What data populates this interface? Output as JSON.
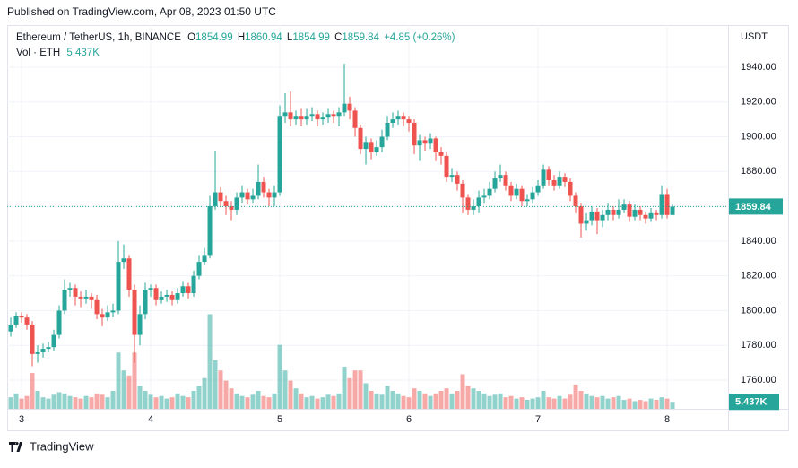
{
  "header": {
    "published": "Published on TradingView.com, Apr 08, 2023 01:50 UTC"
  },
  "footer": {
    "brand": "TradingView"
  },
  "chart_data": {
    "type": "candlestick",
    "symbol": "Ethereum / TetherUS, 1h, BINANCE",
    "ohlc_prefixes": [
      "O",
      "H",
      "L",
      "C"
    ],
    "change": {
      "value": 4.85,
      "label": "+4.85"
    },
    "change_pct": {
      "value": 0.26,
      "label": "(+0.26%)"
    },
    "volume_title": "Vol · ETH",
    "last_volume_label": "5.437K",
    "y_axis_label": "USDT",
    "up_color": "#26a69a",
    "down_color": "#ef5350",
    "grid": true,
    "ylim": [
      1743.5,
      1964.2
    ],
    "yticks": [
      {
        "value": 1760,
        "label": "1760.00"
      },
      {
        "value": 1780,
        "label": "1780.00"
      },
      {
        "value": 1800,
        "label": "1800.00"
      },
      {
        "value": 1820,
        "label": "1820.00"
      },
      {
        "value": 1840,
        "label": "1840.00"
      },
      {
        "value": 1860,
        "label": "1860.00"
      },
      {
        "value": 1880,
        "label": "1880.00"
      },
      {
        "value": 1900,
        "label": "1900.00"
      },
      {
        "value": 1920,
        "label": "1920.00"
      },
      {
        "value": 1940,
        "label": "1940.00"
      }
    ],
    "xlim": [
      -0.67,
      133.33
    ],
    "xticks": [
      {
        "value": 2,
        "label": "3"
      },
      {
        "value": 26,
        "label": "4"
      },
      {
        "value": 50,
        "label": "5"
      },
      {
        "value": 74,
        "label": "6"
      },
      {
        "value": 98,
        "label": "7"
      },
      {
        "value": 122,
        "label": "8"
      }
    ],
    "y2lim": [
      0,
      300000
    ],
    "open": [
      1788,
      1792,
      1797,
      1796,
      1792,
      1775,
      1776,
      1778,
      1779,
      1786,
      1800,
      1812,
      1813,
      1808,
      1807,
      1808,
      1806,
      1798,
      1796,
      1799,
      1800,
      1828,
      1830,
      1812,
      1786,
      1798,
      1812,
      1813,
      1806,
      1808,
      1809,
      1806,
      1810,
      1814,
      1810,
      1820,
      1828,
      1832,
      1860,
      1868,
      1863,
      1860,
      1858,
      1865,
      1868,
      1864,
      1866,
      1874,
      1868,
      1865,
      1868,
      1912,
      1914,
      1910,
      1912,
      1910,
      1912,
      1913,
      1910,
      1911,
      1913,
      1912,
      1914,
      1919,
      1915,
      1905,
      1893,
      1897,
      1891,
      1894,
      1900,
      1908,
      1910,
      1912,
      1910,
      1908,
      1895,
      1898,
      1896,
      1899,
      1891,
      1889,
      1877,
      1878,
      1873,
      1865,
      1858,
      1860,
      1865,
      1866,
      1870,
      1876,
      1878,
      1872,
      1866,
      1870,
      1863,
      1864,
      1868,
      1872,
      1881,
      1875,
      1872,
      1877,
      1874,
      1866,
      1860,
      1850,
      1852,
      1857,
      1852,
      1855,
      1858,
      1855,
      1858,
      1861,
      1854,
      1858,
      1855,
      1853,
      1856,
      1855,
      1867,
      1854.99
    ],
    "high": [
      1796,
      1799,
      1799,
      1798,
      1794,
      1780,
      1781,
      1782,
      1789,
      1803,
      1818,
      1816,
      1815,
      1811,
      1812,
      1810,
      1809,
      1801,
      1803,
      1804,
      1840,
      1838,
      1832,
      1815,
      1803,
      1816,
      1815,
      1815,
      1811,
      1812,
      1811,
      1813,
      1817,
      1816,
      1823,
      1832,
      1836,
      1866,
      1892,
      1871,
      1866,
      1863,
      1868,
      1872,
      1870,
      1870,
      1884,
      1877,
      1870,
      1872,
      1918,
      1925,
      1926,
      1915,
      1916,
      1916,
      1917,
      1915,
      1914,
      1916,
      1915,
      1917,
      1942,
      1923,
      1917,
      1907,
      1900,
      1899,
      1898,
      1904,
      1912,
      1914,
      1915,
      1914,
      1912,
      1910,
      1901,
      1900,
      1902,
      1900,
      1894,
      1891,
      1882,
      1880,
      1875,
      1867,
      1864,
      1869,
      1870,
      1874,
      1880,
      1884,
      1880,
      1874,
      1873,
      1872,
      1867,
      1871,
      1875,
      1884,
      1883,
      1878,
      1880,
      1879,
      1876,
      1868,
      1862,
      1856,
      1860,
      1859,
      1858,
      1862,
      1860,
      1864,
      1864,
      1863,
      1861,
      1860,
      1857,
      1859,
      1858,
      1872,
      1870,
      1860.94
    ],
    "low": [
      1785,
      1790,
      1793,
      1789,
      1768,
      1770,
      1773,
      1776,
      1777,
      1784,
      1798,
      1808,
      1803,
      1802,
      1804,
      1801,
      1795,
      1791,
      1794,
      1796,
      1798,
      1824,
      1808,
      1770,
      1780,
      1795,
      1808,
      1803,
      1804,
      1805,
      1803,
      1804,
      1808,
      1807,
      1808,
      1818,
      1826,
      1830,
      1858,
      1860,
      1855,
      1852,
      1855,
      1862,
      1861,
      1862,
      1864,
      1865,
      1860,
      1860,
      1866,
      1908,
      1906,
      1907,
      1906,
      1907,
      1909,
      1906,
      1907,
      1908,
      1908,
      1906,
      1912,
      1910,
      1900,
      1890,
      1884,
      1887,
      1889,
      1891,
      1898,
      1905,
      1907,
      1906,
      1903,
      1890,
      1886,
      1892,
      1893,
      1886,
      1884,
      1874,
      1874,
      1869,
      1856,
      1855,
      1855,
      1856,
      1862,
      1864,
      1868,
      1874,
      1869,
      1863,
      1864,
      1860,
      1860,
      1862,
      1866,
      1870,
      1872,
      1869,
      1870,
      1871,
      1863,
      1856,
      1842,
      1846,
      1849,
      1844,
      1848,
      1852,
      1852,
      1853,
      1856,
      1851,
      1852,
      1852,
      1850,
      1851,
      1852,
      1853,
      1853,
      1854.99
    ],
    "close": [
      1792,
      1797,
      1796,
      1792,
      1775,
      1776,
      1778,
      1779,
      1786,
      1800,
      1812,
      1813,
      1808,
      1807,
      1808,
      1806,
      1798,
      1796,
      1799,
      1800,
      1828,
      1830,
      1812,
      1786,
      1798,
      1812,
      1813,
      1806,
      1808,
      1809,
      1806,
      1810,
      1814,
      1810,
      1820,
      1828,
      1832,
      1860,
      1868,
      1863,
      1860,
      1858,
      1865,
      1868,
      1864,
      1866,
      1874,
      1868,
      1865,
      1868,
      1912,
      1914,
      1910,
      1912,
      1910,
      1912,
      1913,
      1910,
      1911,
      1913,
      1912,
      1914,
      1919,
      1915,
      1905,
      1893,
      1897,
      1891,
      1894,
      1900,
      1908,
      1910,
      1912,
      1910,
      1908,
      1895,
      1898,
      1896,
      1899,
      1891,
      1889,
      1877,
      1878,
      1873,
      1865,
      1858,
      1860,
      1865,
      1866,
      1870,
      1876,
      1878,
      1872,
      1866,
      1870,
      1863,
      1864,
      1868,
      1872,
      1881,
      1875,
      1872,
      1877,
      1874,
      1866,
      1860,
      1850,
      1852,
      1857,
      1852,
      1855,
      1858,
      1855,
      1858,
      1861,
      1854,
      1858,
      1855,
      1853,
      1856,
      1855,
      1867,
      1854.99,
      1859.84
    ],
    "volume": [
      9000,
      12000,
      8000,
      10000,
      28000,
      14000,
      9000,
      8000,
      11000,
      13000,
      12000,
      10000,
      9000,
      8000,
      10000,
      9000,
      12000,
      11000,
      9000,
      14000,
      44000,
      30000,
      26000,
      44000,
      18000,
      14000,
      11000,
      9000,
      10000,
      8000,
      9000,
      12000,
      10000,
      9000,
      14000,
      18000,
      24000,
      74000,
      38000,
      30000,
      22000,
      16000,
      12000,
      10000,
      9000,
      11000,
      14000,
      10000,
      9000,
      12000,
      50000,
      30000,
      22000,
      16000,
      12000,
      9000,
      10000,
      8000,
      9000,
      11000,
      10000,
      12000,
      33000,
      24000,
      30000,
      30000,
      20000,
      14000,
      12000,
      11000,
      18000,
      14000,
      12000,
      10000,
      9000,
      16000,
      14000,
      12000,
      10000,
      12000,
      14000,
      16000,
      12000,
      14000,
      27000,
      18000,
      16000,
      14000,
      12000,
      10000,
      11000,
      12000,
      9000,
      10000,
      8000,
      9000,
      7000,
      8000,
      9000,
      14000,
      9000,
      8000,
      10000,
      8000,
      11000,
      19000,
      14000,
      12000,
      10000,
      9000,
      10000,
      8000,
      9000,
      10000,
      7000,
      8000,
      6000,
      7000,
      6000,
      8000,
      7000,
      9000,
      8000,
      5437
    ]
  }
}
